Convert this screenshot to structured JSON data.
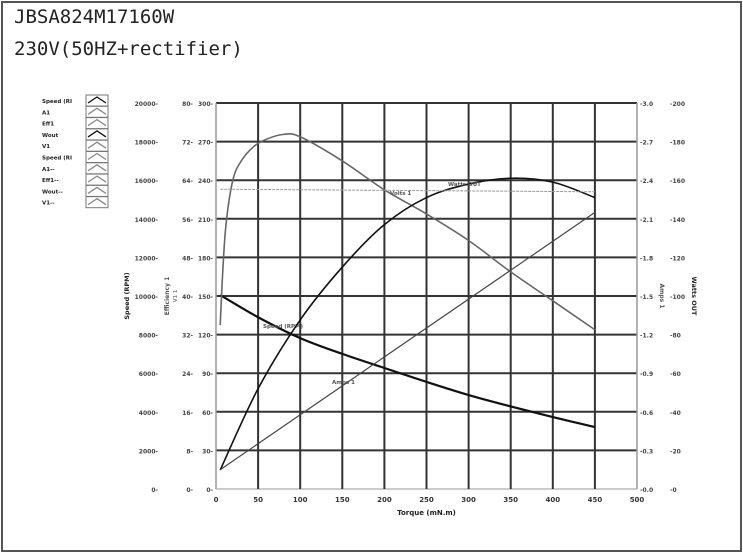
{
  "header": {
    "title": "JBSA824M17160W",
    "subtitle": "230V(50HZ+rectifier)"
  },
  "chart_data": {
    "type": "line",
    "xlabel": "Torque (mN.m)",
    "xlim": [
      0,
      500
    ],
    "xticks": [
      "0",
      "50",
      "100",
      "150",
      "200",
      "250",
      "300",
      "350",
      "400",
      "450",
      "500"
    ],
    "grid": true,
    "legend_position": "left",
    "legend": [
      "Speed (RI",
      "A1",
      "Eff1",
      "Wout",
      "V1",
      "Speed (RI",
      "A1--",
      "Eff1--",
      "Wout--",
      "V1--"
    ],
    "axes": {
      "speed": {
        "label": "Speed (RPM)",
        "range": [
          0,
          20000
        ],
        "ticks": [
          "0",
          "2000",
          "4000",
          "6000",
          "8000",
          "10000",
          "12000",
          "14000",
          "16000",
          "18000",
          "20000"
        ]
      },
      "efficiency": {
        "label": "Efficiency 1",
        "range": [
          0,
          80
        ],
        "ticks": [
          "0",
          "8",
          "16",
          "24",
          "32",
          "40",
          "48",
          "56",
          "64",
          "72",
          "80"
        ]
      },
      "volts": {
        "label": "V1 1",
        "range": [
          0,
          300
        ],
        "ticks": [
          "0",
          "30",
          "60",
          "90",
          "120",
          "150",
          "180",
          "210",
          "240",
          "270",
          "300"
        ]
      },
      "amps": {
        "label": "Amps 1",
        "range": [
          0,
          3.0
        ],
        "ticks": [
          "0.0",
          "0.3",
          "0.6",
          "0.9",
          "1.2",
          "1.5",
          "1.8",
          "2.1",
          "2.4",
          "2.7",
          "3.0"
        ]
      },
      "watts": {
        "label": "Watts OUT",
        "range": [
          0,
          200
        ],
        "ticks": [
          "0",
          "20",
          "40",
          "60",
          "80",
          "100",
          "120",
          "140",
          "160",
          "180",
          "200"
        ]
      }
    },
    "series": [
      {
        "name": "Speed (RPM)",
        "axis": "speed",
        "color": "#111111",
        "width": 2.2,
        "x": [
          5,
          50,
          100,
          150,
          200,
          250,
          300,
          350,
          400,
          450
        ],
        "y": [
          10050,
          8900,
          7820,
          7000,
          6270,
          5550,
          4870,
          4280,
          3730,
          3210
        ]
      },
      {
        "name": "Efficiency 1",
        "axis": "efficiency",
        "color": "#666666",
        "width": 1.6,
        "x": [
          5,
          8,
          12,
          20,
          30,
          45,
          60,
          80,
          100,
          150,
          200,
          250,
          300,
          350,
          400,
          450
        ],
        "y": [
          34,
          45,
          55,
          64,
          68,
          71,
          72.5,
          73.5,
          73,
          68,
          62,
          57,
          51.5,
          45,
          39,
          33
        ]
      },
      {
        "name": "Watts OUT",
        "axis": "watts",
        "color": "#111111",
        "width": 1.6,
        "x": [
          5,
          50,
          100,
          150,
          200,
          250,
          300,
          350,
          400,
          450
        ],
        "y": [
          9.8,
          52,
          87.6,
          115,
          137,
          151,
          158,
          161,
          159,
          151
        ]
      },
      {
        "name": "Amps 1",
        "axis": "amps",
        "color": "#444444",
        "width": 1.2,
        "x": [
          5,
          450
        ],
        "y": [
          0.15,
          2.15
        ]
      },
      {
        "name": "Volts 1",
        "axis": "volts",
        "color": "#999999",
        "width": 1,
        "x": [
          5,
          450
        ],
        "y": [
          233,
          231
        ]
      }
    ]
  }
}
